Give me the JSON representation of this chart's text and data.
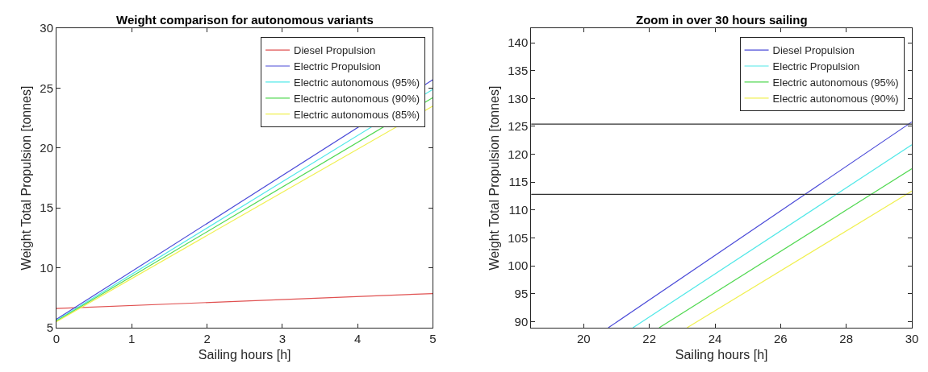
{
  "chart_data": [
    {
      "type": "line",
      "title": "Weight comparison for autonomous variants",
      "xlabel": "Sailing hours [h]",
      "ylabel": "Weight Total Propulsion [tonnes]",
      "xlim": [
        0,
        5
      ],
      "ylim": [
        5,
        30
      ],
      "xticks": [
        0,
        1,
        2,
        3,
        4,
        5
      ],
      "yticks": [
        5,
        10,
        15,
        20,
        25,
        30
      ],
      "legend": "top right",
      "x": [
        0,
        5
      ],
      "series": [
        {
          "name": "Diesel Propulsion",
          "color": "#e05050",
          "values": [
            6.6,
            7.85
          ]
        },
        {
          "name": "Electric Propulsion",
          "color": "#4a4ad8",
          "values": [
            5.7,
            25.7
          ]
        },
        {
          "name": "Electric autonomous (95%)",
          "color": "#50e8e8",
          "values": [
            5.6,
            24.9
          ]
        },
        {
          "name": "Electric autonomous (90%)",
          "color": "#50d850",
          "values": [
            5.55,
            24.2
          ]
        },
        {
          "name": "Electric autonomous (85%)",
          "color": "#f0f050",
          "values": [
            5.5,
            23.5
          ]
        }
      ]
    },
    {
      "type": "line",
      "title": "Zoom in over 30 hours sailing",
      "xlabel": "Sailing hours [h]",
      "ylabel": "Weight Total Propulsion [tonnes]",
      "xlim": [
        18.4,
        30
      ],
      "ylim": [
        88.9,
        142.6
      ],
      "xticks": [
        20,
        22,
        24,
        26,
        28,
        30
      ],
      "yticks": [
        90,
        95,
        100,
        105,
        110,
        115,
        120,
        125,
        130,
        135,
        140
      ],
      "legend": "top right",
      "series": [
        {
          "name": "Diesel Propulsion",
          "color": "#4a4ad8",
          "x": [
            20.75,
            30
          ],
          "values": [
            88.9,
            125.8
          ]
        },
        {
          "name": "Electric Propulsion",
          "color": "#50e8e8",
          "x": [
            21.5,
            30
          ],
          "values": [
            88.9,
            121.7
          ]
        },
        {
          "name": "Electric autonomous (95%)",
          "color": "#50d850",
          "x": [
            22.3,
            30
          ],
          "values": [
            88.9,
            117.4
          ]
        },
        {
          "name": "Electric autonomous (90%)",
          "color": "#f0f050",
          "x": [
            23.15,
            30
          ],
          "values": [
            88.9,
            113.4
          ]
        }
      ],
      "ref_lines": [
        {
          "axis": "y",
          "value": 125.4,
          "color": "#303030"
        },
        {
          "axis": "y",
          "value": 112.8,
          "color": "#303030"
        }
      ]
    }
  ]
}
